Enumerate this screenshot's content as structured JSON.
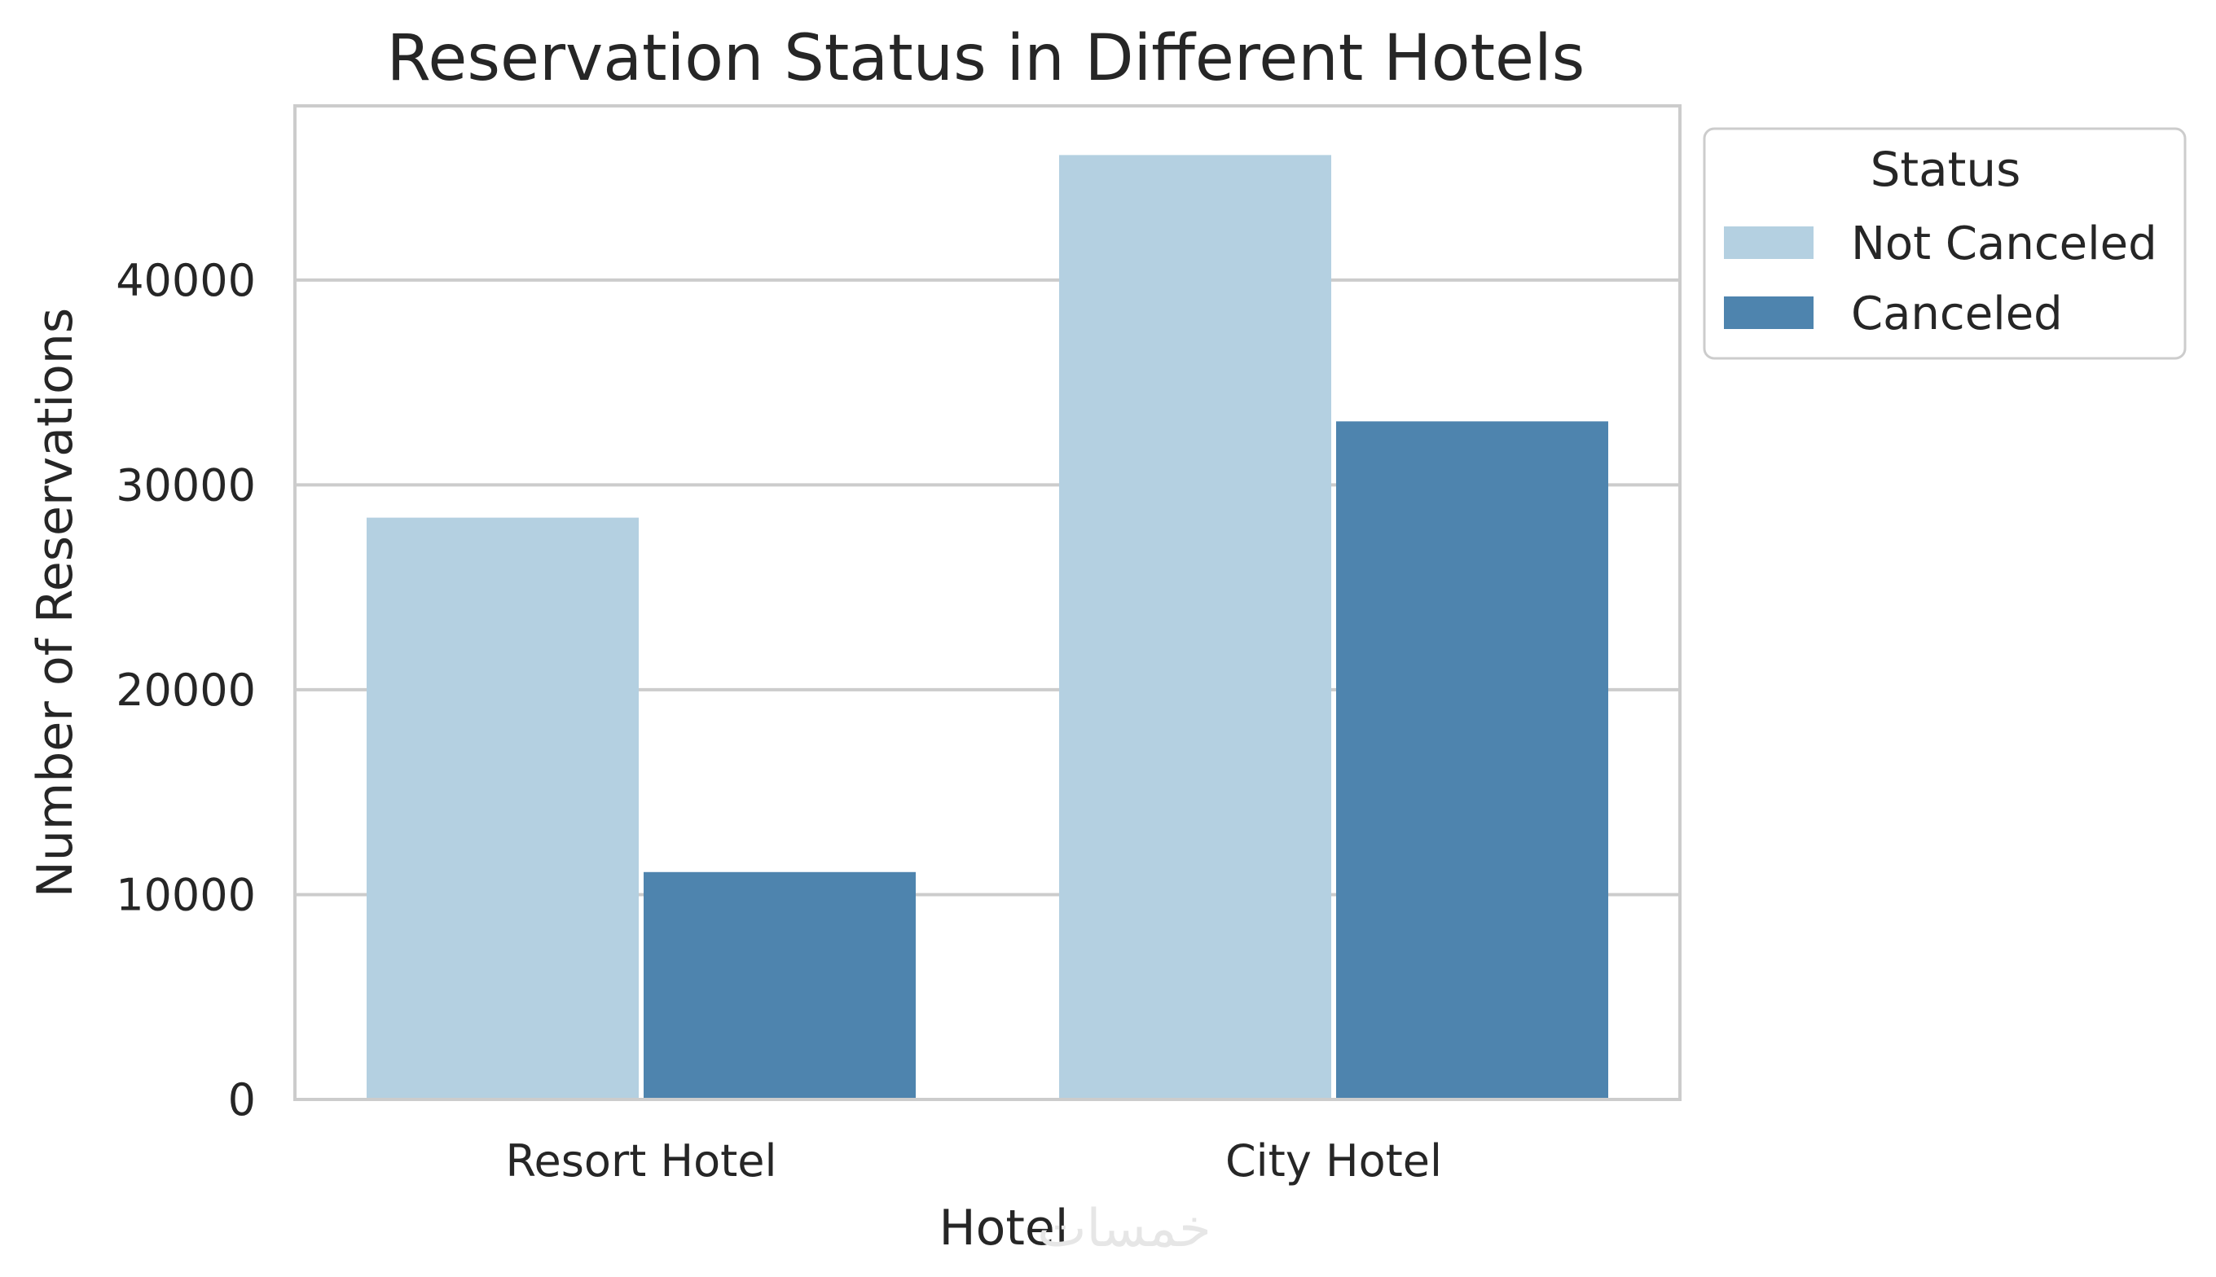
{
  "chart_data": {
    "type": "bar",
    "title": "Reservation Status in Different Hotels",
    "xlabel": "Hotel",
    "ylabel": "Number of Reservations",
    "categories": [
      "Resort Hotel",
      "City Hotel"
    ],
    "series": [
      {
        "name": "Not Canceled",
        "color": "#b4d0e1",
        "values": [
          28400,
          46100
        ]
      },
      {
        "name": "Canceled",
        "color": "#4e84ae",
        "values": [
          11100,
          33100
        ]
      }
    ],
    "ylim": [
      0,
      48500
    ],
    "yticks": [
      0,
      10000,
      20000,
      30000,
      40000
    ],
    "ytick_labels": [
      "0",
      "10000",
      "20000",
      "30000",
      "40000"
    ],
    "grid": true,
    "legend": {
      "title": "Status",
      "placement": "outside top-right"
    }
  },
  "watermark": "خمسات"
}
